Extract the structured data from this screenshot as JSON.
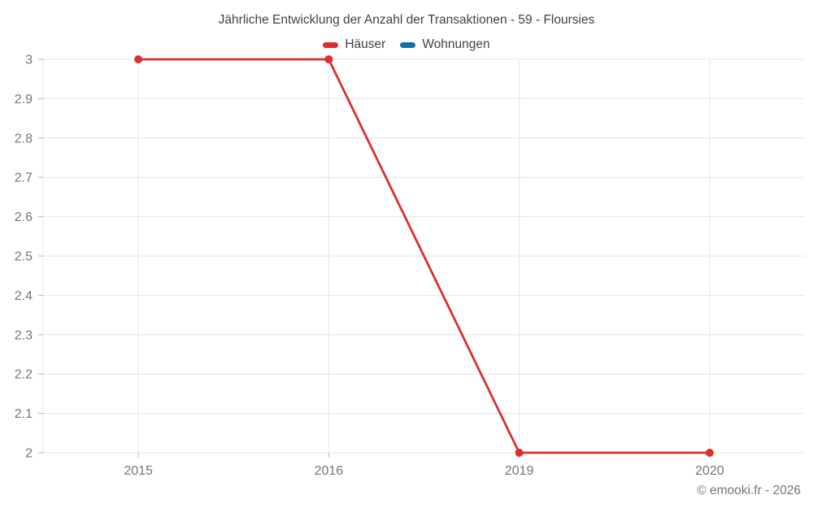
{
  "chart_data": {
    "type": "line",
    "title": "Jährliche Entwicklung der Anzahl der Transaktionen - 59 - Floursies",
    "categories": [
      "2015",
      "2016",
      "2019",
      "2020"
    ],
    "series": [
      {
        "name": "Häuser",
        "color": "#d9302f",
        "values": [
          3,
          3,
          2,
          2
        ]
      },
      {
        "name": "Wohnungen",
        "color": "#1272a5",
        "values": []
      }
    ],
    "ylim": [
      2,
      3
    ],
    "ytick_step": 0.1,
    "xlabel": "",
    "ylabel": "",
    "grid": true,
    "legend_position": "top",
    "colors": {
      "gridline": "#e6e6e6",
      "tick": "#b3b3b3",
      "axis_label": "#757575",
      "title": "#424242"
    }
  },
  "footer": {
    "copyright": "© emooki.fr - 2026"
  }
}
